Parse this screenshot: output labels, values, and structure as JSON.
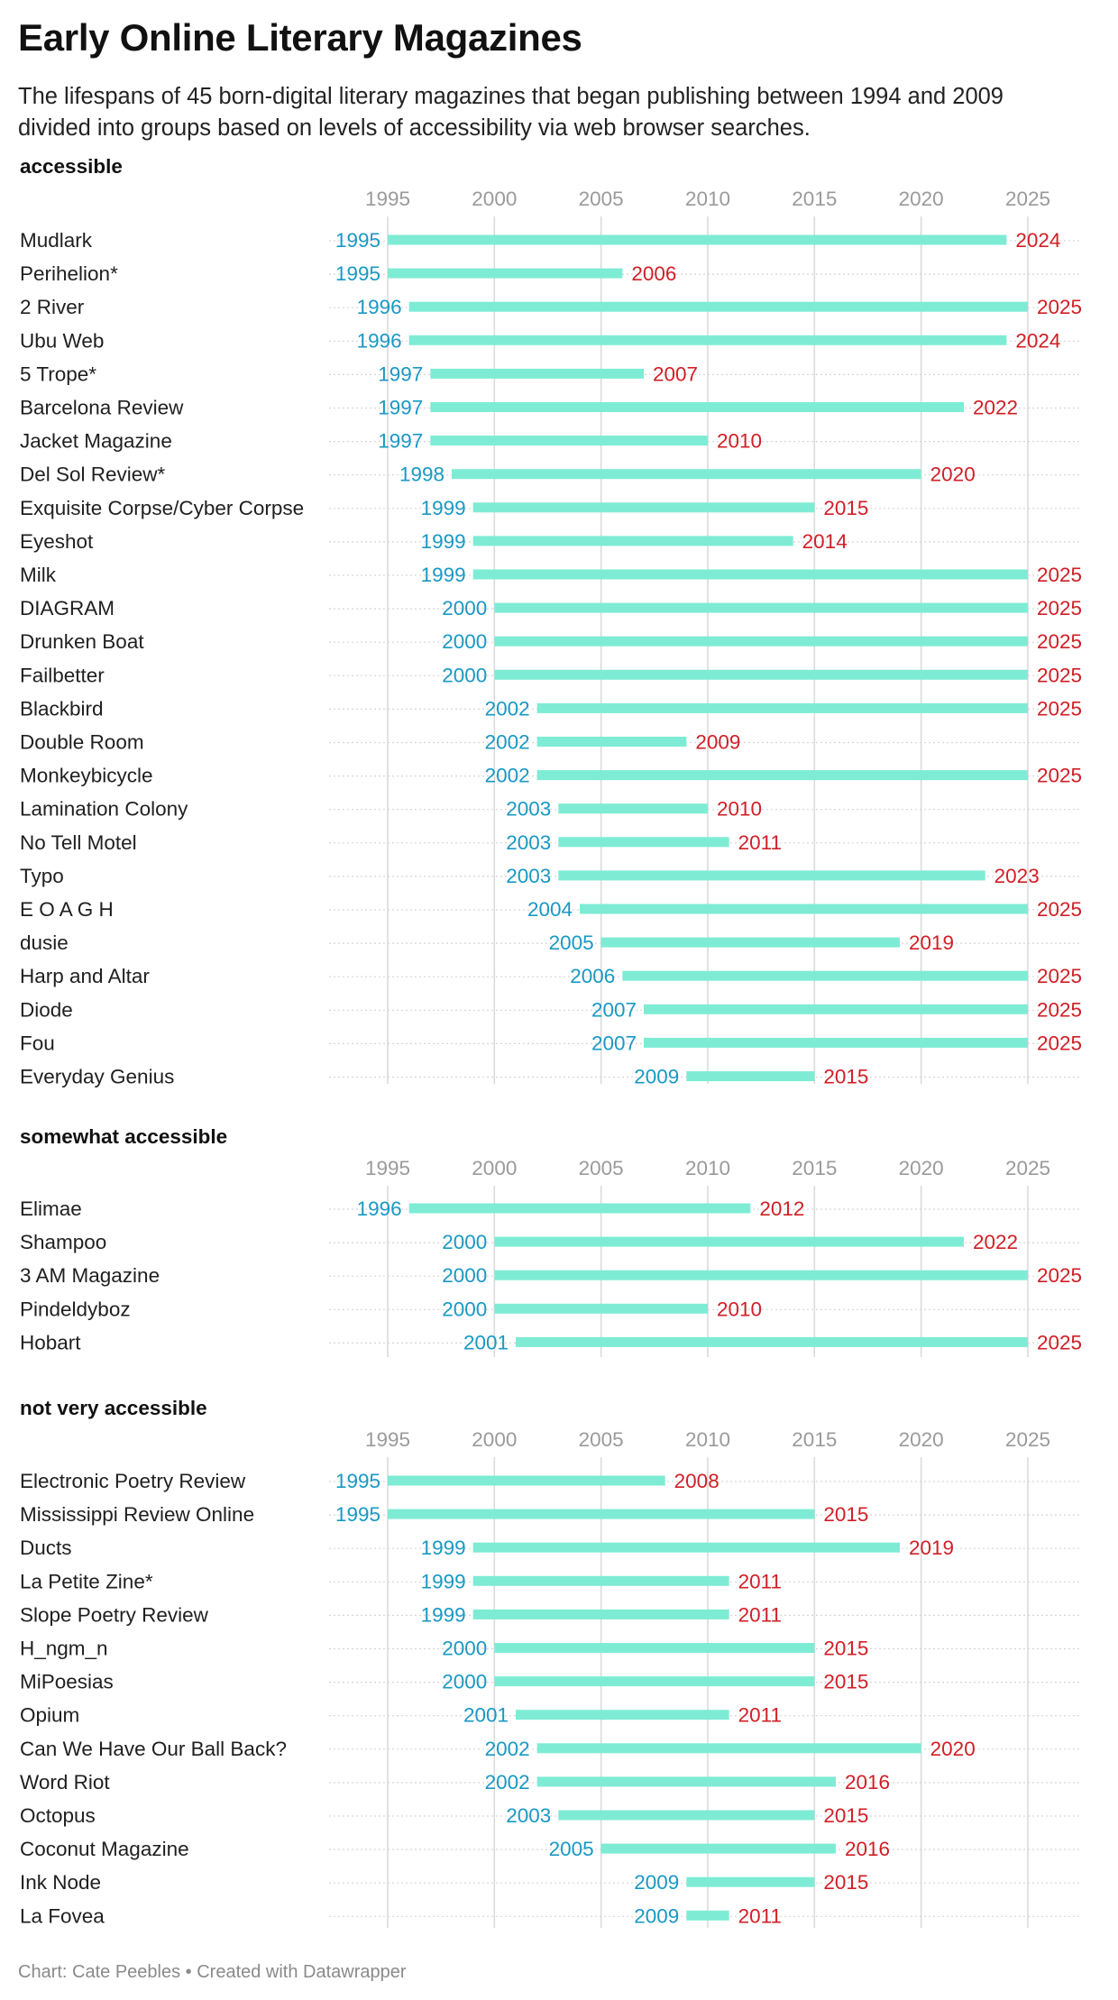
{
  "title": "Early Online Literary Magazines",
  "subtitle": "The lifespans of 45 born-digital literary magazines that began publishing between 1994 and 2009 divided into groups based on levels of accessibility via web browser searches.",
  "footer": "Chart: Cate Peebles • Created with Datawrapper",
  "colors": {
    "bar": "#7eecd4",
    "start_label": "#1a98c4",
    "end_label": "#d01f26",
    "tick_label": "#9a9a9a",
    "gridline": "#d9d9d9"
  },
  "chart_data": [
    {
      "type": "range-bar",
      "group": "accessible",
      "x_ticks": [
        1995,
        2000,
        2005,
        2010,
        2015,
        2020,
        2025
      ],
      "xlim": [
        1995,
        2025
      ],
      "grid": true,
      "rows": [
        {
          "name": "Mudlark",
          "start": 1995,
          "end": 2024
        },
        {
          "name": "Perihelion*",
          "start": 1995,
          "end": 2006
        },
        {
          "name": "2 River",
          "start": 1996,
          "end": 2025
        },
        {
          "name": "Ubu Web",
          "start": 1996,
          "end": 2024
        },
        {
          "name": "5 Trope*",
          "start": 1997,
          "end": 2007
        },
        {
          "name": "Barcelona Review",
          "start": 1997,
          "end": 2022
        },
        {
          "name": "Jacket Magazine",
          "start": 1997,
          "end": 2010
        },
        {
          "name": "Del Sol Review*",
          "start": 1998,
          "end": 2020
        },
        {
          "name": "Exquisite Corpse/Cyber Corpse",
          "start": 1999,
          "end": 2015
        },
        {
          "name": "Eyeshot",
          "start": 1999,
          "end": 2014
        },
        {
          "name": "Milk",
          "start": 1999,
          "end": 2025
        },
        {
          "name": "DIAGRAM",
          "start": 2000,
          "end": 2025
        },
        {
          "name": "Drunken Boat",
          "start": 2000,
          "end": 2025
        },
        {
          "name": "Failbetter",
          "start": 2000,
          "end": 2025
        },
        {
          "name": "Blackbird",
          "start": 2002,
          "end": 2025
        },
        {
          "name": "Double Room",
          "start": 2002,
          "end": 2009
        },
        {
          "name": "Monkeybicycle",
          "start": 2002,
          "end": 2025
        },
        {
          "name": "Lamination Colony",
          "start": 2003,
          "end": 2010
        },
        {
          "name": "No Tell Motel",
          "start": 2003,
          "end": 2011
        },
        {
          "name": "Typo",
          "start": 2003,
          "end": 2023
        },
        {
          "name": "E O A G H",
          "start": 2004,
          "end": 2025
        },
        {
          "name": "dusie",
          "start": 2005,
          "end": 2019
        },
        {
          "name": "Harp and Altar",
          "start": 2006,
          "end": 2025
        },
        {
          "name": "Diode",
          "start": 2007,
          "end": 2025
        },
        {
          "name": "Fou",
          "start": 2007,
          "end": 2025
        },
        {
          "name": "Everyday Genius",
          "start": 2009,
          "end": 2015
        }
      ]
    },
    {
      "type": "range-bar",
      "group": "somewhat accessible",
      "x_ticks": [
        1995,
        2000,
        2005,
        2010,
        2015,
        2020,
        2025
      ],
      "xlim": [
        1995,
        2025
      ],
      "grid": true,
      "rows": [
        {
          "name": "Elimae",
          "start": 1996,
          "end": 2012
        },
        {
          "name": "Shampoo",
          "start": 2000,
          "end": 2022
        },
        {
          "name": "3 AM Magazine",
          "start": 2000,
          "end": 2025
        },
        {
          "name": "Pindeldyboz",
          "start": 2000,
          "end": 2010
        },
        {
          "name": "Hobart",
          "start": 2001,
          "end": 2025
        }
      ]
    },
    {
      "type": "range-bar",
      "group": "not very accessible",
      "x_ticks": [
        1995,
        2000,
        2005,
        2010,
        2015,
        2020,
        2025
      ],
      "xlim": [
        1995,
        2025
      ],
      "grid": true,
      "rows": [
        {
          "name": "Electronic Poetry Review",
          "start": 1995,
          "end": 2008
        },
        {
          "name": "Mississippi Review Online",
          "start": 1995,
          "end": 2015
        },
        {
          "name": "Ducts",
          "start": 1999,
          "end": 2019
        },
        {
          "name": "La Petite Zine*",
          "start": 1999,
          "end": 2011
        },
        {
          "name": "Slope Poetry Review",
          "start": 1999,
          "end": 2011
        },
        {
          "name": "H_ngm_n",
          "start": 2000,
          "end": 2015
        },
        {
          "name": "MiPoesias",
          "start": 2000,
          "end": 2015
        },
        {
          "name": "Opium",
          "start": 2001,
          "end": 2011
        },
        {
          "name": "Can We Have Our Ball Back?",
          "start": 2002,
          "end": 2020
        },
        {
          "name": "Word Riot",
          "start": 2002,
          "end": 2016
        },
        {
          "name": "Octopus",
          "start": 2003,
          "end": 2015
        },
        {
          "name": "Coconut Magazine",
          "start": 2005,
          "end": 2016
        },
        {
          "name": "Ink Node",
          "start": 2009,
          "end": 2015
        },
        {
          "name": "La Fovea",
          "start": 2009,
          "end": 2011
        }
      ]
    }
  ]
}
